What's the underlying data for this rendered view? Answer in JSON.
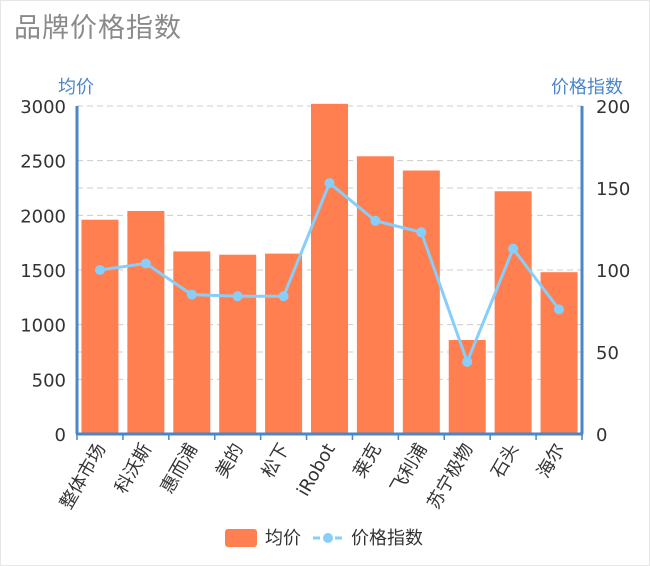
{
  "chart_data": {
    "type": "bar",
    "title": "品牌价格指数",
    "categories": [
      "整体市场",
      "科沃斯",
      "惠而浦",
      "美的",
      "松下",
      "iRobot",
      "莱克",
      "飞利浦",
      "苏宁极物",
      "石头",
      "海尔"
    ],
    "series": [
      {
        "name": "均价",
        "type": "bar",
        "axis": "left",
        "color": "#ff7f50",
        "values": [
          1960,
          2040,
          1670,
          1640,
          1650,
          3020,
          2540,
          2410,
          860,
          2220,
          1480
        ]
      },
      {
        "name": "价格指数",
        "type": "line",
        "axis": "right",
        "color": "#87cefa",
        "values": [
          100,
          104,
          85,
          84,
          84,
          153,
          130,
          123,
          44,
          113,
          76
        ]
      }
    ],
    "y_left": {
      "label": "均价",
      "range": [
        0,
        3000
      ],
      "ticks": [
        0,
        500,
        1000,
        1500,
        2000,
        2500,
        3000
      ]
    },
    "y_right": {
      "label": "价格指数",
      "range": [
        0,
        200
      ],
      "ticks": [
        0,
        50,
        100,
        150,
        200
      ]
    },
    "grid": true,
    "legend": "bottom-center"
  }
}
